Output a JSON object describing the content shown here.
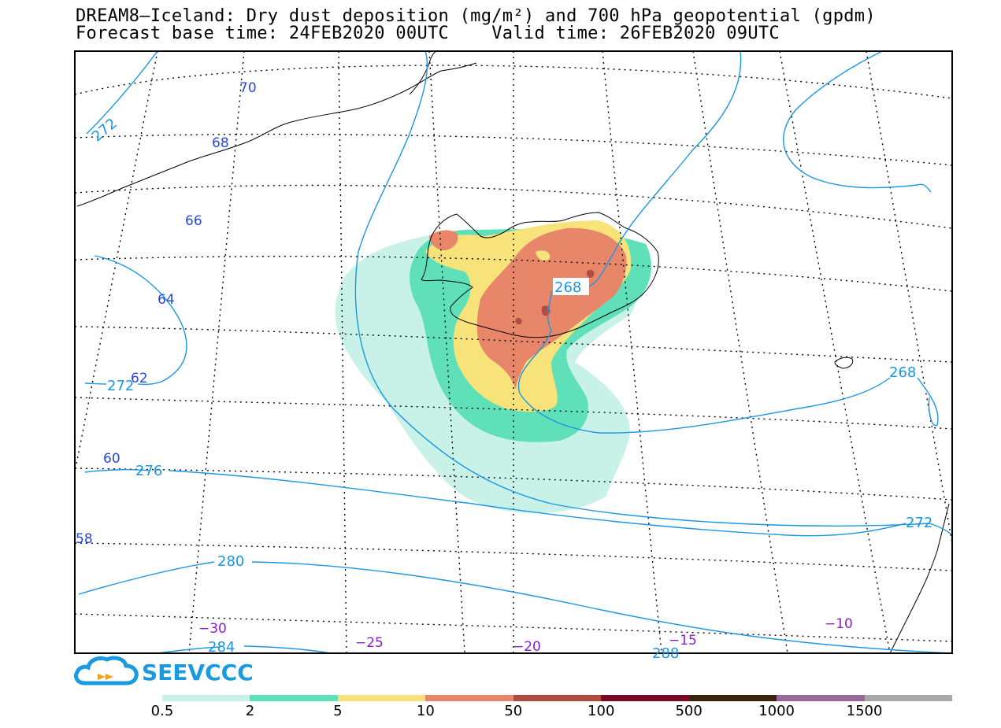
{
  "title_line1": "DREAM8—Iceland: Dry dust deposition (mg/m²) and 700 hPa geopotential (gpdm)",
  "title_line2": "Forecast base time: 24FEB2020 00UTC    Valid time: 26FEB2020 09UTC",
  "logo_text": "SEEVCCC",
  "latitude_labels": [
    "70",
    "68",
    "66",
    "64",
    "62",
    "60",
    "58"
  ],
  "longitude_labels": [
    "−30",
    "−25",
    "−20",
    "−15",
    "−10"
  ],
  "contour_labels": [
    "272",
    "272",
    "268",
    "268",
    "276",
    "272",
    "280",
    "284",
    "288"
  ],
  "legend": {
    "labels": [
      "0.5",
      "2",
      "5",
      "10",
      "50",
      "100",
      "500",
      "1000",
      "1500"
    ],
    "colors": [
      "#c8f2e8",
      "#5fe0b8",
      "#f8e27a",
      "#e8866a",
      "#b04c42",
      "#7a0a24",
      "#3a2410",
      "#9a6898",
      "#a8a8a8"
    ]
  },
  "colors": {
    "contour": "#1a96e6",
    "lat_label": "#2848e0",
    "lon_label": "#8a20c8"
  }
}
